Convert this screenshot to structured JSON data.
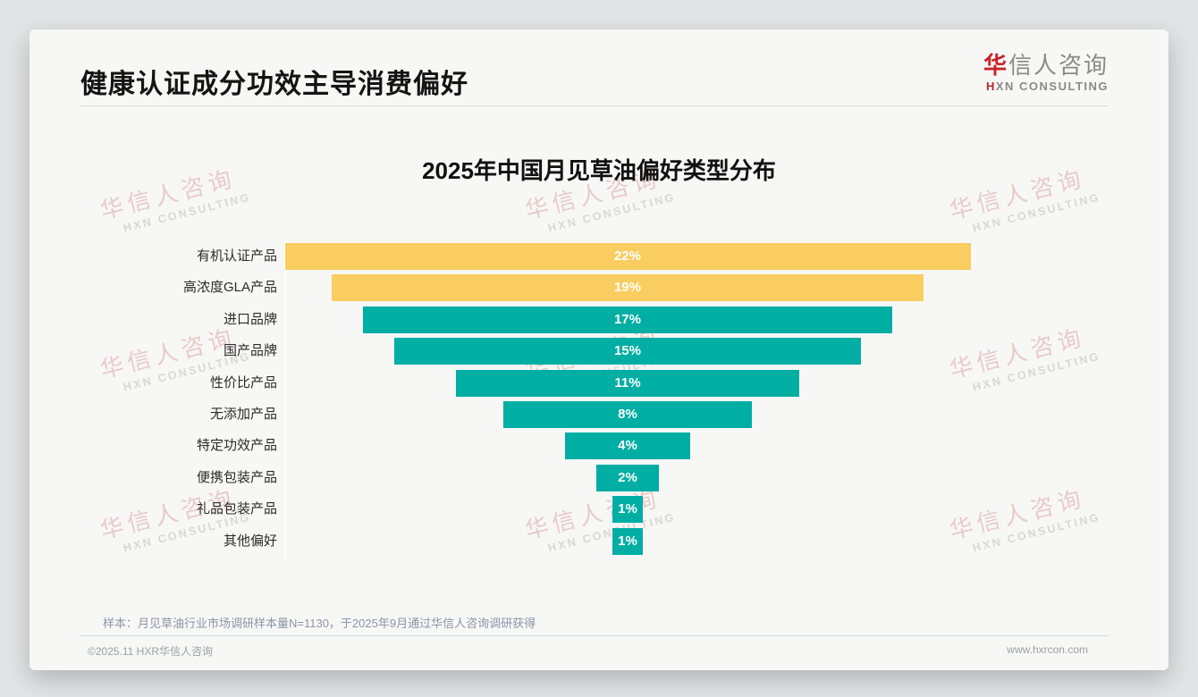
{
  "header": {
    "title": "健康认证成分功效主导消费偏好",
    "logo": {
      "brand_first_char": "华",
      "brand_rest": "信人咨询",
      "tagline_first_char": "H",
      "tagline_rest": "XN CONSULTING"
    }
  },
  "watermark": {
    "line1": "华信人咨询",
    "line2": "HXN CONSULTING"
  },
  "chart_data": {
    "type": "bar",
    "variant": "centered-funnel-horizontal",
    "title": "2025年中国月见草油偏好类型分布",
    "categories": [
      "有机认证产品",
      "高浓度GLA产品",
      "进口品牌",
      "国产品牌",
      "性价比产品",
      "无添加产品",
      "特定功效产品",
      "便携包装产品",
      "礼品包装产品",
      "其他偏好"
    ],
    "values": [
      22,
      19,
      17,
      15,
      11,
      8,
      4,
      2,
      1,
      1
    ],
    "value_labels": [
      "22%",
      "19%",
      "17%",
      "15%",
      "11%",
      "8%",
      "4%",
      "2%",
      "1%",
      "1%"
    ],
    "bar_colors": [
      "#facd60",
      "#facd60",
      "#00aea4",
      "#00aea4",
      "#00aea4",
      "#00aea4",
      "#00aea4",
      "#00aea4",
      "#00aea4",
      "#00aea4"
    ],
    "value_label_color": "#ffffff",
    "xlim": [
      0,
      22
    ],
    "grid": false,
    "legend": null,
    "unit": "%"
  },
  "footnote": {
    "sample_note": "样本：月见草油行业市场调研样本量N=1130，于2025年9月通过华信人咨询调研获得"
  },
  "footer": {
    "copyright": "©2025.11 HXR华信人咨询",
    "website": "www.hxrcon.com"
  }
}
